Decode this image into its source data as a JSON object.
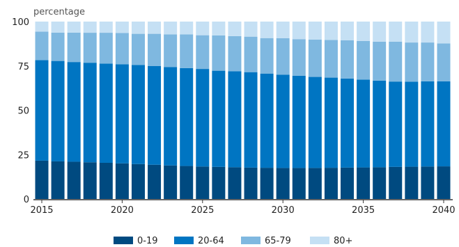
{
  "chart_data": {
    "type": "bar",
    "stacked": true,
    "title": "",
    "xlabel": "",
    "ylabel": "percentage",
    "ylim": [
      0,
      100
    ],
    "yticks": [
      0,
      25,
      50,
      75,
      100
    ],
    "xticks": [
      "2015",
      "2020",
      "2025",
      "2030",
      "2035",
      "2040"
    ],
    "grid": false,
    "legend_position": "bottom",
    "categories": [
      "2015",
      "2016",
      "2017",
      "2018",
      "2019",
      "2020",
      "2021",
      "2022",
      "2023",
      "2024",
      "2025",
      "2026",
      "2027",
      "2028",
      "2029",
      "2030",
      "2031",
      "2032",
      "2033",
      "2034",
      "2035",
      "2036",
      "2037",
      "2038",
      "2039",
      "2040"
    ],
    "series": [
      {
        "name": "0-19",
        "color": "#004a80",
        "values": [
          21.6,
          21.2,
          21.0,
          20.7,
          20.4,
          20.1,
          19.7,
          19.3,
          18.9,
          18.6,
          18.3,
          18.1,
          17.9,
          17.7,
          17.6,
          17.5,
          17.5,
          17.5,
          17.6,
          17.7,
          17.8,
          17.9,
          18.1,
          18.2,
          18.3,
          18.4
        ]
      },
      {
        "name": "20-64",
        "color": "#0075c2",
        "values": [
          56.7,
          56.6,
          56.2,
          56.1,
          55.9,
          55.8,
          55.8,
          55.6,
          55.5,
          55.2,
          55.0,
          54.2,
          54.1,
          53.8,
          53.1,
          52.6,
          52.0,
          51.3,
          50.8,
          50.2,
          49.5,
          48.8,
          48.1,
          47.9,
          48.0,
          47.9
        ]
      },
      {
        "name": "65-79",
        "color": "#7fb8e0",
        "values": [
          16.0,
          16.0,
          16.6,
          16.9,
          17.4,
          17.7,
          17.6,
          18.2,
          18.4,
          19.0,
          19.0,
          19.9,
          19.8,
          20.0,
          20.0,
          20.5,
          20.6,
          21.0,
          21.2,
          21.6,
          21.8,
          22.0,
          22.5,
          22.1,
          21.9,
          21.4
        ]
      },
      {
        "name": "80+",
        "color": "#c5e0f4",
        "values": [
          5.7,
          6.2,
          6.2,
          6.3,
          6.3,
          6.4,
          6.9,
          6.9,
          7.2,
          7.2,
          7.7,
          7.8,
          8.2,
          8.5,
          9.3,
          9.4,
          9.9,
          10.2,
          10.4,
          10.5,
          10.9,
          11.3,
          11.3,
          11.8,
          11.8,
          12.3
        ]
      }
    ]
  }
}
